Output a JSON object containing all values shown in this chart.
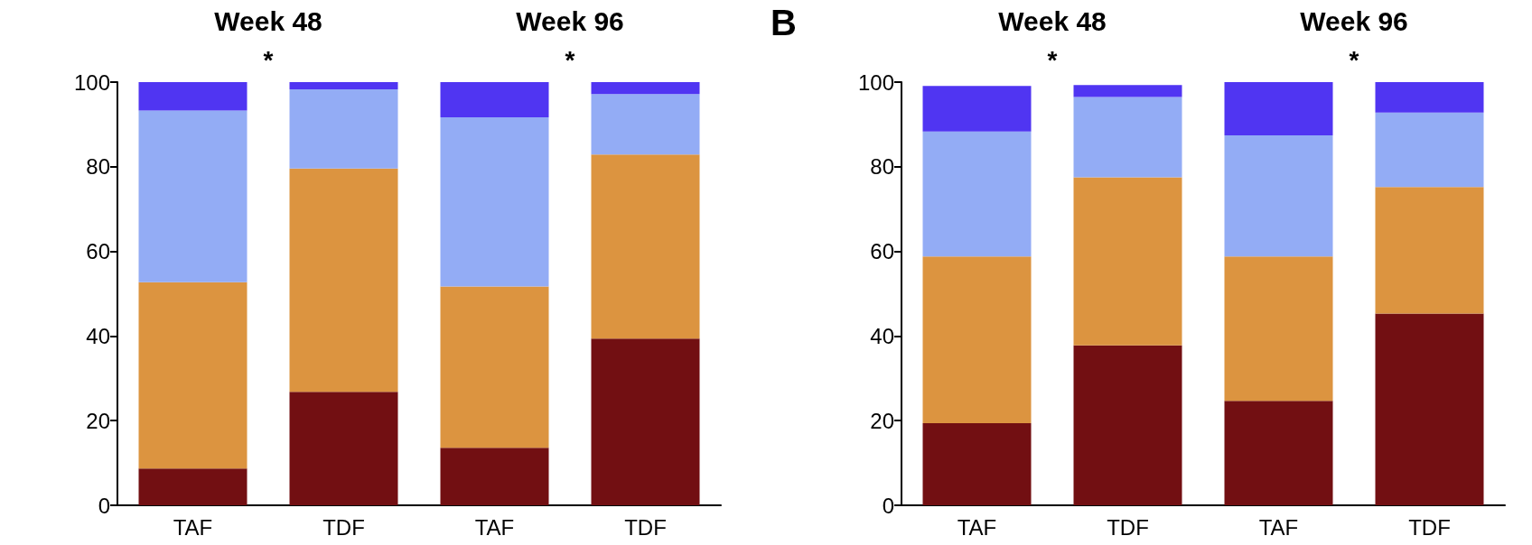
{
  "chart_data": [
    {
      "type": "bar",
      "stacked": true,
      "categories": [
        "TAF",
        "TDF",
        "TAF",
        "TDF"
      ],
      "ylim": [
        0,
        100
      ],
      "yticks": [
        0,
        20,
        40,
        60,
        80,
        100
      ],
      "annotations": [
        "Week 48",
        "*",
        "Week 96",
        "*"
      ],
      "series": [
        {
          "color": "#720f12",
          "values": [
            8.7,
            26.8,
            13.6,
            39.4
          ]
        },
        {
          "color": "#dc9440",
          "values": [
            44.0,
            52.8,
            38.1,
            43.5
          ]
        },
        {
          "color": "#93acf5",
          "values": [
            40.6,
            18.7,
            40.0,
            14.3
          ]
        },
        {
          "color": "#5035f2",
          "values": [
            6.7,
            1.7,
            8.3,
            2.8
          ]
        }
      ]
    },
    {
      "type": "bar",
      "stacked": true,
      "title": "B",
      "categories": [
        "TAF",
        "TDF",
        "TAF",
        "TDF"
      ],
      "ylim": [
        0,
        100
      ],
      "yticks": [
        0,
        20,
        40,
        60,
        80,
        100
      ],
      "annotations": [
        "Week 48",
        "*",
        "Week 96",
        "*"
      ],
      "series": [
        {
          "color": "#720f12",
          "values": [
            19.4,
            37.8,
            24.7,
            45.3
          ]
        },
        {
          "color": "#dc9440",
          "values": [
            39.4,
            39.7,
            34.1,
            29.9
          ]
        },
        {
          "color": "#93acf5",
          "values": [
            29.5,
            19.0,
            28.6,
            17.6
          ]
        },
        {
          "color": "#5035f2",
          "values": [
            10.8,
            2.8,
            12.6,
            7.2
          ]
        }
      ]
    }
  ]
}
